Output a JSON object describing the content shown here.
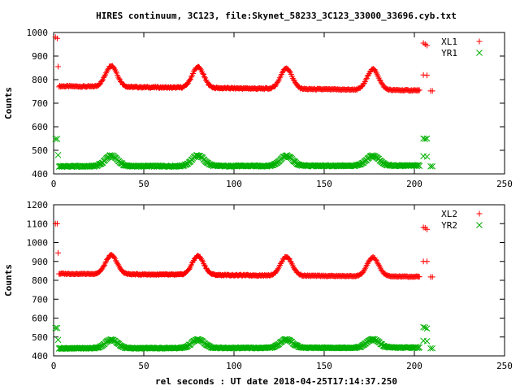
{
  "title": "HIRES continuum, 3C123, file:Skynet_58233_3C123_33000_33696.cyb.txt",
  "xlabel": "rel seconds : UT date 2018-04-25T17:14:37.250",
  "chart_data": [
    {
      "type": "scatter",
      "ylabel": "Counts",
      "xlim": [
        0,
        250
      ],
      "ylim": [
        400,
        1000
      ],
      "xticks": [
        0,
        50,
        100,
        150,
        200,
        250
      ],
      "yticks": [
        400,
        500,
        600,
        700,
        800,
        900,
        1000
      ],
      "legend_position": "top-right",
      "series": [
        {
          "name": "XL1",
          "marker": "plus",
          "color": "#ff0000",
          "baseline": 772,
          "trend": -0.09,
          "peaks": [
            {
              "x": 32,
              "height": 90,
              "width": 3.2
            },
            {
              "x": 80,
              "height": 88,
              "width": 3.2
            },
            {
              "x": 129,
              "height": 88,
              "width": 3.2
            },
            {
              "x": 177,
              "height": 88,
              "width": 3.2
            }
          ],
          "x_range": [
            3,
            203
          ],
          "extra_points": [
            [
              1,
              980
            ],
            [
              2,
              975
            ],
            [
              2.5,
              855
            ],
            [
              205,
              955
            ],
            [
              206,
              950
            ],
            [
              207,
              945
            ],
            [
              205,
              820
            ],
            [
              207,
              818
            ],
            [
              209,
              752
            ],
            [
              210,
              752
            ]
          ]
        },
        {
          "name": "YR1",
          "marker": "x",
          "color": "#00b000",
          "baseline": 432,
          "trend": 0.015,
          "peaks": [
            {
              "x": 32,
              "height": 45,
              "width": 3.4
            },
            {
              "x": 80,
              "height": 45,
              "width": 3.4
            },
            {
              "x": 129,
              "height": 43,
              "width": 3.4
            },
            {
              "x": 177,
              "height": 43,
              "width": 3.4
            }
          ],
          "x_range": [
            3,
            203
          ],
          "extra_points": [
            [
              1,
              548
            ],
            [
              2,
              548
            ],
            [
              2.5,
              480
            ],
            [
              205,
              550
            ],
            [
              206,
              548
            ],
            [
              207,
              550
            ],
            [
              205,
              475
            ],
            [
              207,
              473
            ],
            [
              209,
              432
            ],
            [
              210,
              432
            ]
          ]
        }
      ]
    },
    {
      "type": "scatter",
      "ylabel": "Counts",
      "xlim": [
        0,
        250
      ],
      "ylim": [
        400,
        1200
      ],
      "xticks": [
        0,
        50,
        100,
        150,
        200,
        250
      ],
      "yticks": [
        400,
        500,
        600,
        700,
        800,
        900,
        1000,
        1100,
        1200
      ],
      "legend_position": "top-right",
      "series": [
        {
          "name": "XL2",
          "marker": "plus",
          "color": "#ff0000",
          "baseline": 835,
          "trend": -0.08,
          "peaks": [
            {
              "x": 32,
              "height": 100,
              "width": 3.2
            },
            {
              "x": 80,
              "height": 100,
              "width": 3.2
            },
            {
              "x": 129,
              "height": 100,
              "width": 3.2
            },
            {
              "x": 177,
              "height": 100,
              "width": 3.2
            }
          ],
          "x_range": [
            3,
            203
          ],
          "extra_points": [
            [
              1,
              1100
            ],
            [
              2,
              1100
            ],
            [
              2.5,
              945
            ],
            [
              205,
              1080
            ],
            [
              206,
              1078
            ],
            [
              207,
              1070
            ],
            [
              205,
              900
            ],
            [
              207,
              900
            ],
            [
              209,
              818
            ],
            [
              210,
              818
            ]
          ]
        },
        {
          "name": "YR2",
          "marker": "x",
          "color": "#00b000",
          "baseline": 440,
          "trend": 0.02,
          "peaks": [
            {
              "x": 32,
              "height": 45,
              "width": 3.4
            },
            {
              "x": 80,
              "height": 45,
              "width": 3.4
            },
            {
              "x": 129,
              "height": 45,
              "width": 3.4
            },
            {
              "x": 177,
              "height": 45,
              "width": 3.4
            }
          ],
          "x_range": [
            3,
            203
          ],
          "extra_points": [
            [
              1,
              548
            ],
            [
              2,
              548
            ],
            [
              2.5,
              485
            ],
            [
              205,
              552
            ],
            [
              206,
              550
            ],
            [
              207,
              545
            ],
            [
              205,
              480
            ],
            [
              207,
              478
            ],
            [
              209,
              440
            ],
            [
              210,
              440
            ]
          ]
        }
      ]
    }
  ]
}
